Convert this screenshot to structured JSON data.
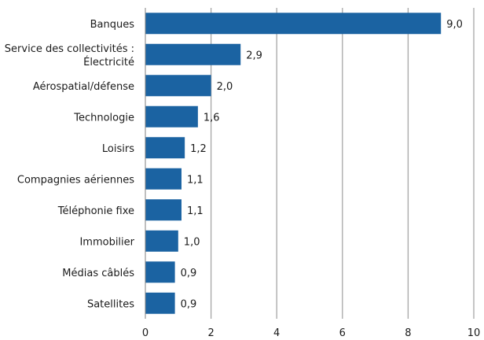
{
  "chart_data": {
    "type": "bar",
    "orientation": "horizontal",
    "categories": [
      [
        "Banques"
      ],
      [
        "Service des collectivités :",
        "Électricité"
      ],
      [
        "Aérospatial/défense"
      ],
      [
        "Technologie"
      ],
      [
        "Loisirs"
      ],
      [
        "Compagnies aériennes"
      ],
      [
        "Téléphonie fixe"
      ],
      [
        "Immobilier"
      ],
      [
        "Médias câblés"
      ],
      [
        "Satellites"
      ]
    ],
    "values": [
      9.0,
      2.9,
      2.0,
      1.6,
      1.2,
      1.1,
      1.1,
      1.0,
      0.9,
      0.9
    ],
    "value_labels": [
      "9,0",
      "2,9",
      "2,0",
      "1,6",
      "1,2",
      "1,1",
      "1,1",
      "1,0",
      "0,9",
      "0,9"
    ],
    "xticks": [
      0,
      2,
      4,
      6,
      8,
      10
    ],
    "xtick_labels": [
      "0",
      "2",
      "4",
      "6",
      "8",
      "10"
    ],
    "xlim": [
      0,
      10
    ],
    "grid": "vertical",
    "colors": {
      "bar": "#1b63a2",
      "grid": "#a6a6a6",
      "axis": "#7f7f7f"
    }
  }
}
